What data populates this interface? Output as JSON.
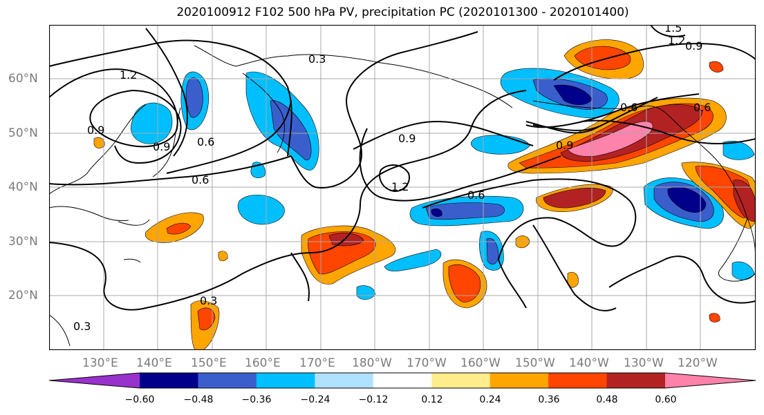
{
  "title": "2020100912 F102 500 hPa PV, precipitation PC (2020101300 - 2020101400)",
  "lat_labels": [
    "60°N",
    "50°N",
    "40°N",
    "30°N",
    "20°N"
  ],
  "lon_labels": [
    "130°E",
    "140°E",
    "150°E",
    "160°E",
    "170°E",
    "180°W",
    "170°W",
    "160°W",
    "150°W",
    "140°W",
    "130°W",
    "120°W"
  ],
  "colorbar": {
    "tick_labels": [
      "−0.60",
      "−0.48",
      "−0.36",
      "−0.24",
      "−0.12",
      "0.12",
      "0.24",
      "0.36",
      "0.48",
      "0.60"
    ],
    "colors": [
      "#9932cc",
      "#00008b",
      "#3a5fcd",
      "#00bfff",
      "#b0e2ff",
      "#ffffff",
      "#ffec8b",
      "#ffa500",
      "#ff4500",
      "#b22222",
      "#ff82ab"
    ]
  },
  "contour_labels": [
    "1.2",
    "0.9",
    "0.9",
    "0.6",
    "0.6",
    "0.3",
    "0.9",
    "1.2",
    "0.6",
    "0.9",
    "0.6",
    "0.3",
    "0.3",
    "1.2",
    "0.9",
    "0.6",
    "1.5"
  ],
  "colors": {
    "grid": "#a8a8a8",
    "contour": "#000000",
    "axis_text": "#7a7a7a"
  }
}
